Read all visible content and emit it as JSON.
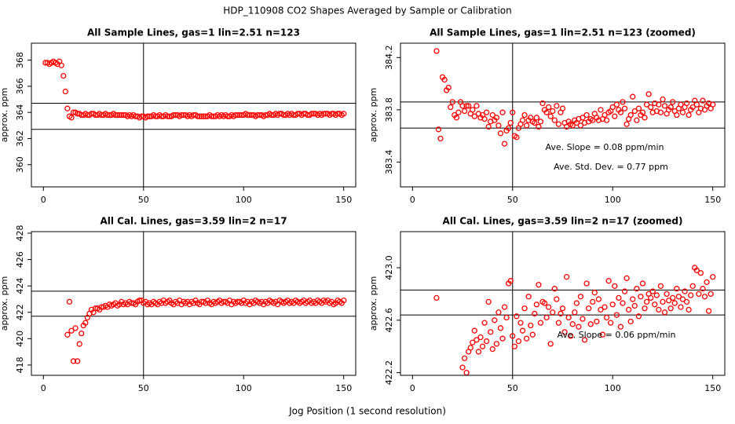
{
  "title": "HDP_110908  CO2 Shapes Averaged by Sample or Calibration",
  "xlabel": "Jog Position (1 second resolution)",
  "chart_data": [
    {
      "type": "scatter",
      "title": "All Sample Lines, gas=1 lin=2.51 n=123",
      "ylabel": "approx. ppm",
      "color": "#ff0000",
      "xlim": [
        -6,
        156
      ],
      "xticks": [
        0,
        50,
        100,
        150
      ],
      "ylim": [
        358.3,
        369.3
      ],
      "yticks": [
        360,
        362,
        364,
        366,
        368
      ],
      "hlines": [
        364.7,
        362.7
      ],
      "vline": 50,
      "annotations": [],
      "x": [
        1,
        2,
        3,
        4,
        5,
        6,
        7,
        8,
        9,
        10,
        11,
        12,
        13,
        14,
        15,
        16,
        17,
        18,
        19,
        20,
        21,
        22,
        23,
        24,
        25,
        26,
        27,
        28,
        29,
        30,
        31,
        32,
        33,
        34,
        35,
        36,
        37,
        38,
        39,
        40,
        41,
        42,
        43,
        44,
        45,
        46,
        47,
        48,
        49,
        50,
        51,
        52,
        53,
        54,
        55,
        56,
        57,
        58,
        59,
        60,
        61,
        62,
        63,
        64,
        65,
        66,
        67,
        68,
        69,
        70,
        71,
        72,
        73,
        74,
        75,
        76,
        77,
        78,
        79,
        80,
        81,
        82,
        83,
        84,
        85,
        86,
        87,
        88,
        89,
        90,
        91,
        92,
        93,
        94,
        95,
        96,
        97,
        98,
        99,
        100,
        101,
        102,
        103,
        104,
        105,
        106,
        107,
        108,
        109,
        110,
        111,
        112,
        113,
        114,
        115,
        116,
        117,
        118,
        119,
        120,
        121,
        122,
        123,
        124,
        125,
        126,
        127,
        128,
        129,
        130,
        131,
        132,
        133,
        134,
        135,
        136,
        137,
        138,
        139,
        140,
        141,
        142,
        143,
        144,
        145,
        146,
        147,
        148,
        149,
        150
      ],
      "values": [
        367.8,
        367.8,
        367.7,
        367.8,
        367.9,
        367.8,
        367.7,
        367.9,
        367.6,
        366.8,
        365.6,
        364.3,
        363.7,
        363.6,
        364.0,
        364.0,
        363.9,
        363.9,
        363.8,
        363.8,
        363.9,
        363.8,
        363.8,
        363.9,
        363.9,
        363.8,
        363.8,
        363.9,
        363.8,
        363.8,
        363.9,
        363.8,
        363.8,
        363.8,
        363.9,
        363.8,
        363.8,
        363.8,
        363.8,
        363.8,
        363.8,
        363.7,
        363.8,
        363.7,
        363.8,
        363.7,
        363.7,
        363.6,
        363.7,
        363.7,
        363.6,
        363.7,
        363.7,
        363.7,
        363.8,
        363.7,
        363.7,
        363.8,
        363.7,
        363.7,
        363.8,
        363.7,
        363.7,
        363.7,
        363.8,
        363.8,
        363.8,
        363.7,
        363.8,
        363.8,
        363.8,
        363.7,
        363.8,
        363.7,
        363.8,
        363.8,
        363.7,
        363.7,
        363.7,
        363.7,
        363.7,
        363.7,
        363.8,
        363.7,
        363.7,
        363.7,
        363.8,
        363.7,
        363.8,
        363.7,
        363.8,
        363.7,
        363.7,
        363.8,
        363.7,
        363.8,
        363.8,
        363.8,
        363.8,
        363.8,
        363.9,
        363.8,
        363.8,
        363.8,
        363.8,
        363.7,
        363.8,
        363.8,
        363.8,
        363.7,
        363.8,
        363.8,
        363.9,
        363.8,
        363.8,
        363.9,
        363.8,
        363.9,
        363.9,
        363.8,
        363.8,
        363.9,
        363.8,
        363.9,
        363.8,
        363.8,
        363.9,
        363.9,
        363.8,
        363.9,
        363.9,
        363.8,
        363.8,
        363.9,
        363.9,
        363.9,
        363.8,
        363.9,
        363.8,
        363.9,
        363.9,
        363.9,
        363.8,
        363.9,
        363.9,
        363.8,
        363.9,
        363.9,
        363.8,
        363.9
      ]
    },
    {
      "type": "scatter",
      "title": "All Sample Lines, gas=1 lin=2.51 n=123 (zoomed)",
      "ylabel": "approx. ppm",
      "color": "#ff0000",
      "xlim": [
        -6,
        156
      ],
      "xticks": [
        0,
        50,
        100,
        150
      ],
      "ylim": [
        383.21,
        384.31
      ],
      "yticks": [
        383.4,
        383.8,
        384.2
      ],
      "hlines": [
        383.86,
        383.66
      ],
      "vline": 50,
      "annotations": [
        "Ave. Slope =  0.08  ppm/min",
        "Ave. Std. Dev. =  0.77  ppm"
      ],
      "x": [
        12,
        13,
        14,
        15,
        16,
        17,
        18,
        19,
        20,
        21,
        22,
        23,
        24,
        25,
        26,
        27,
        28,
        29,
        30,
        31,
        32,
        33,
        34,
        35,
        36,
        37,
        38,
        39,
        40,
        41,
        42,
        43,
        44,
        45,
        46,
        47,
        48,
        49,
        50,
        51,
        52,
        53,
        54,
        55,
        56,
        57,
        58,
        59,
        60,
        61,
        62,
        63,
        64,
        65,
        66,
        67,
        68,
        69,
        70,
        71,
        72,
        73,
        74,
        75,
        76,
        77,
        78,
        79,
        80,
        81,
        82,
        83,
        84,
        85,
        86,
        87,
        88,
        89,
        90,
        91,
        92,
        93,
        94,
        95,
        96,
        97,
        98,
        99,
        100,
        101,
        102,
        103,
        104,
        105,
        106,
        107,
        108,
        109,
        110,
        111,
        112,
        113,
        114,
        115,
        116,
        117,
        118,
        119,
        120,
        121,
        122,
        123,
        124,
        125,
        126,
        127,
        128,
        129,
        130,
        131,
        132,
        133,
        134,
        135,
        136,
        137,
        138,
        139,
        140,
        141,
        142,
        143,
        144,
        145,
        146,
        147,
        148,
        149,
        150
      ],
      "values": [
        384.25,
        383.65,
        383.58,
        384.05,
        384.03,
        383.95,
        383.97,
        383.82,
        383.86,
        383.76,
        383.74,
        383.78,
        383.86,
        383.83,
        383.79,
        383.83,
        383.83,
        383.77,
        383.8,
        383.75,
        383.83,
        383.77,
        383.74,
        383.76,
        383.73,
        383.78,
        383.67,
        383.71,
        383.76,
        383.72,
        383.74,
        383.68,
        383.62,
        383.78,
        383.54,
        383.64,
        383.66,
        383.7,
        383.78,
        383.6,
        383.59,
        383.66,
        383.69,
        383.72,
        383.76,
        383.68,
        383.72,
        383.74,
        383.71,
        383.7,
        383.74,
        383.67,
        383.71,
        383.85,
        383.8,
        383.78,
        383.82,
        383.75,
        383.79,
        383.72,
        383.83,
        383.69,
        383.78,
        383.81,
        383.7,
        383.67,
        383.71,
        383.69,
        383.68,
        383.72,
        383.7,
        383.73,
        383.68,
        383.74,
        383.7,
        383.76,
        383.71,
        383.73,
        383.72,
        383.77,
        383.74,
        383.72,
        383.8,
        383.73,
        383.76,
        383.72,
        383.78,
        383.79,
        383.82,
        383.75,
        383.84,
        383.8,
        383.78,
        383.86,
        383.81,
        383.69,
        383.73,
        383.76,
        383.9,
        383.79,
        383.72,
        383.81,
        383.76,
        383.78,
        383.74,
        383.84,
        383.92,
        383.82,
        383.78,
        383.85,
        383.79,
        383.84,
        383.78,
        383.88,
        383.83,
        383.77,
        383.8,
        383.82,
        383.86,
        383.79,
        383.76,
        383.81,
        383.84,
        383.78,
        383.82,
        383.85,
        383.76,
        383.8,
        383.82,
        383.87,
        383.84,
        383.78,
        383.81,
        383.87,
        383.8,
        383.83,
        383.85,
        383.81,
        383.84
      ]
    },
    {
      "type": "scatter",
      "title": "All Cal. Lines, gas=3.59 lin=2 n=17",
      "ylabel": "approx. ppm",
      "color": "#ff0000",
      "xlim": [
        -6,
        156
      ],
      "xticks": [
        0,
        50,
        100,
        150
      ],
      "ylim": [
        417.22,
        428.12
      ],
      "yticks": [
        418,
        420,
        422,
        424,
        426,
        428
      ],
      "hlines": [
        423.6,
        421.7
      ],
      "vline": 50,
      "annotations": [],
      "x": [
        12,
        13,
        14,
        15,
        16,
        17,
        18,
        19,
        20,
        21,
        22,
        23,
        24,
        25,
        26,
        27,
        28,
        29,
        30,
        31,
        32,
        33,
        34,
        35,
        36,
        37,
        38,
        39,
        40,
        41,
        42,
        43,
        44,
        45,
        46,
        47,
        48,
        49,
        50,
        51,
        52,
        53,
        54,
        55,
        56,
        57,
        58,
        59,
        60,
        61,
        62,
        63,
        64,
        65,
        66,
        67,
        68,
        69,
        70,
        71,
        72,
        73,
        74,
        75,
        76,
        77,
        78,
        79,
        80,
        81,
        82,
        83,
        84,
        85,
        86,
        87,
        88,
        89,
        90,
        91,
        92,
        93,
        94,
        95,
        96,
        97,
        98,
        99,
        100,
        101,
        102,
        103,
        104,
        105,
        106,
        107,
        108,
        109,
        110,
        111,
        112,
        113,
        114,
        115,
        116,
        117,
        118,
        119,
        120,
        121,
        122,
        123,
        124,
        125,
        126,
        127,
        128,
        129,
        130,
        131,
        132,
        133,
        134,
        135,
        136,
        137,
        138,
        139,
        140,
        141,
        142,
        143,
        144,
        145,
        146,
        147,
        148,
        149,
        150
      ],
      "values": [
        420.3,
        422.8,
        420.6,
        418.3,
        420.8,
        418.3,
        419.6,
        420.4,
        421.0,
        421.2,
        421.6,
        421.9,
        422.2,
        422.0,
        422.3,
        422.3,
        422.2,
        422.4,
        422.4,
        422.5,
        422.4,
        422.6,
        422.5,
        422.6,
        422.7,
        422.5,
        422.6,
        422.8,
        422.6,
        422.7,
        422.6,
        422.8,
        422.7,
        422.7,
        422.6,
        422.8,
        422.9,
        422.9,
        422.7,
        422.8,
        422.6,
        422.7,
        422.6,
        422.8,
        422.7,
        422.6,
        422.8,
        422.7,
        422.9,
        422.7,
        422.8,
        422.9,
        422.7,
        422.6,
        422.8,
        422.7,
        422.9,
        422.6,
        422.8,
        422.7,
        422.8,
        422.6,
        422.8,
        422.7,
        422.9,
        422.7,
        422.6,
        422.8,
        422.8,
        422.7,
        422.9,
        422.7,
        422.6,
        422.8,
        422.7,
        422.8,
        422.9,
        422.7,
        422.8,
        422.8,
        422.7,
        422.9,
        422.6,
        422.8,
        422.7,
        422.8,
        422.8,
        422.7,
        422.9,
        422.7,
        422.8,
        422.6,
        422.8,
        422.7,
        422.9,
        422.8,
        422.7,
        422.8,
        422.6,
        422.8,
        422.7,
        422.9,
        422.8,
        422.7,
        422.8,
        422.6,
        422.9,
        422.8,
        422.7,
        422.8,
        422.9,
        422.7,
        422.8,
        422.7,
        422.9,
        422.8,
        422.7,
        422.8,
        422.9,
        422.7,
        422.8,
        422.9,
        422.7,
        422.8,
        422.7,
        422.9,
        422.8,
        422.7,
        422.9,
        422.8,
        422.9,
        422.7,
        422.8,
        422.6,
        422.7,
        422.9,
        422.8,
        422.7,
        422.9
      ]
    },
    {
      "type": "scatter",
      "title": "All Cal. Lines, gas=3.59 lin=2 n=17 (zoomed)",
      "ylabel": "approx. ppm",
      "color": "#ff0000",
      "xlim": [
        -6,
        156
      ],
      "xticks": [
        0,
        50,
        100,
        150
      ],
      "ylim": [
        422.18,
        423.275
      ],
      "yticks": [
        422.2,
        422.6,
        {
          "value": 423,
          "label": "423.0"
        }
      ],
      "hlines": [
        422.83,
        422.64
      ],
      "vline": 50,
      "annotations": [
        "Ave. Slope =  0.06  ppm/min"
      ],
      "x": [
        12,
        25,
        26,
        27,
        28,
        29,
        30,
        31,
        32,
        33,
        34,
        35,
        36,
        37,
        38,
        39,
        40,
        41,
        42,
        43,
        44,
        45,
        46,
        47,
        48,
        49,
        50,
        51,
        52,
        53,
        54,
        55,
        56,
        57,
        58,
        59,
        60,
        61,
        62,
        63,
        64,
        65,
        66,
        67,
        68,
        69,
        70,
        71,
        72,
        73,
        74,
        75,
        76,
        77,
        78,
        79,
        80,
        81,
        82,
        83,
        84,
        85,
        86,
        87,
        88,
        89,
        90,
        91,
        92,
        93,
        94,
        95,
        96,
        97,
        98,
        99,
        100,
        101,
        102,
        103,
        104,
        105,
        106,
        107,
        108,
        109,
        110,
        111,
        112,
        113,
        114,
        115,
        116,
        117,
        118,
        119,
        120,
        121,
        122,
        123,
        124,
        125,
        126,
        127,
        128,
        129,
        130,
        131,
        132,
        133,
        134,
        135,
        136,
        137,
        138,
        139,
        140,
        141,
        142,
        143,
        144,
        145,
        146,
        147,
        148,
        149,
        150
      ],
      "values": [
        422.77,
        422.24,
        422.31,
        422.2,
        422.36,
        422.39,
        422.43,
        422.52,
        422.45,
        422.36,
        422.47,
        422.4,
        422.58,
        422.44,
        422.74,
        422.51,
        422.38,
        422.6,
        422.42,
        422.66,
        422.54,
        422.46,
        422.7,
        422.62,
        422.88,
        422.9,
        422.48,
        422.4,
        422.63,
        422.44,
        422.58,
        422.52,
        422.69,
        422.46,
        422.78,
        422.56,
        422.49,
        422.65,
        422.72,
        422.87,
        422.58,
        422.74,
        422.73,
        422.62,
        422.7,
        422.42,
        422.66,
        422.84,
        422.76,
        422.58,
        422.65,
        422.69,
        422.51,
        422.93,
        422.62,
        422.48,
        422.57,
        422.66,
        422.73,
        422.55,
        422.78,
        422.61,
        422.45,
        422.88,
        422.69,
        422.57,
        422.74,
        422.81,
        422.59,
        422.76,
        422.68,
        422.49,
        422.7,
        422.62,
        422.9,
        422.58,
        422.72,
        422.86,
        422.64,
        422.77,
        422.55,
        422.73,
        422.82,
        422.92,
        422.68,
        422.59,
        422.76,
        422.71,
        422.84,
        422.63,
        422.78,
        422.88,
        422.69,
        422.74,
        422.8,
        422.77,
        422.82,
        422.72,
        422.79,
        422.68,
        422.86,
        422.74,
        422.66,
        422.8,
        422.75,
        422.69,
        422.77,
        422.73,
        422.84,
        422.78,
        422.7,
        422.76,
        422.82,
        422.74,
        422.68,
        422.79,
        422.86,
        423.0,
        422.98,
        422.8,
        422.96,
        422.84,
        422.78,
        422.89,
        422.67,
        422.8,
        422.93
      ]
    }
  ]
}
